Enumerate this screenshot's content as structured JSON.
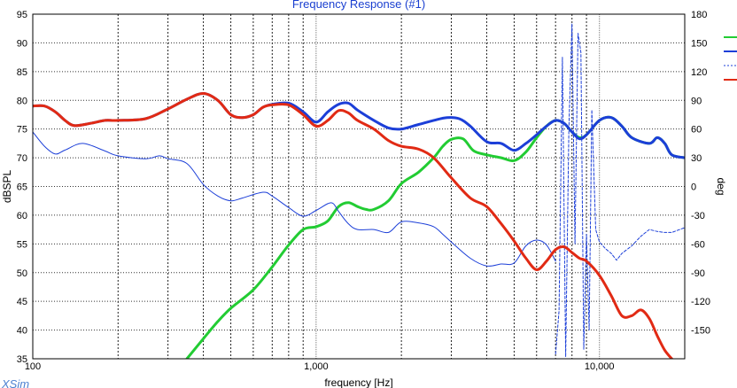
{
  "chart_data": {
    "type": "line",
    "title": "Frequency Response (#1)",
    "xlabel": "frequency [Hz]",
    "ylabel": "dBSPL",
    "y2label": "deg",
    "xscale": "log",
    "xlim": [
      100,
      20000
    ],
    "ylim": [
      35,
      95
    ],
    "y2lim": [
      -180,
      180
    ],
    "x_ticks": [
      {
        "value": 100,
        "label": "100"
      },
      {
        "value": 1000,
        "label": "1,000"
      },
      {
        "value": 10000,
        "label": "10,000"
      }
    ],
    "y_ticks": [
      35,
      40,
      45,
      50,
      55,
      60,
      65,
      70,
      75,
      80,
      85,
      90,
      95
    ],
    "y2_ticks": [
      -150,
      -120,
      -90,
      -60,
      -30,
      0,
      30,
      60,
      90,
      120,
      150,
      180
    ],
    "grid": true,
    "legend_position": "right",
    "series": [
      {
        "color": "#22cc33",
        "axis": "left",
        "style": "solid",
        "width": 3,
        "points": [
          [
            350,
            35
          ],
          [
            400,
            38.5
          ],
          [
            450,
            41.5
          ],
          [
            500,
            43.8
          ],
          [
            600,
            47
          ],
          [
            700,
            51
          ],
          [
            800,
            54.8
          ],
          [
            900,
            57.5
          ],
          [
            1000,
            58
          ],
          [
            1100,
            59
          ],
          [
            1200,
            61.5
          ],
          [
            1300,
            62.2
          ],
          [
            1400,
            61.5
          ],
          [
            1500,
            61
          ],
          [
            1600,
            61
          ],
          [
            1800,
            62.5
          ],
          [
            2000,
            65.5
          ],
          [
            2300,
            67.5
          ],
          [
            2600,
            70
          ],
          [
            2800,
            72
          ],
          [
            3000,
            73.2
          ],
          [
            3300,
            73.3
          ],
          [
            3600,
            71.2
          ],
          [
            4000,
            70.5
          ],
          [
            4500,
            70
          ],
          [
            5000,
            69.5
          ],
          [
            5500,
            71
          ],
          [
            6000,
            73.5
          ],
          [
            6500,
            75.5
          ],
          [
            7000,
            76.5
          ],
          [
            7500,
            76
          ],
          [
            8000,
            74.5
          ],
          [
            8500,
            73.5
          ],
          [
            9000,
            74
          ],
          [
            10000,
            76.5
          ],
          [
            11000,
            77
          ],
          [
            12000,
            75.5
          ],
          [
            13000,
            73.5
          ],
          [
            15000,
            72.5
          ],
          [
            16000,
            73.5
          ],
          [
            17000,
            72.5
          ],
          [
            18000,
            70.5
          ],
          [
            20000,
            70
          ]
        ]
      },
      {
        "color": "#1c3fd8",
        "axis": "left",
        "style": "solid",
        "width": 3,
        "points": [
          [
            100,
            79
          ],
          [
            110,
            79
          ],
          [
            120,
            78
          ],
          [
            130,
            76.5
          ],
          [
            140,
            75.6
          ],
          [
            160,
            76
          ],
          [
            180,
            76.5
          ],
          [
            200,
            76.5
          ],
          [
            250,
            76.8
          ],
          [
            300,
            78.5
          ],
          [
            350,
            80.2
          ],
          [
            400,
            81.2
          ],
          [
            450,
            80
          ],
          [
            500,
            77.5
          ],
          [
            550,
            77
          ],
          [
            600,
            77.5
          ],
          [
            650,
            78.8
          ],
          [
            700,
            79.3
          ],
          [
            800,
            79.5
          ],
          [
            900,
            78
          ],
          [
            1000,
            76.2
          ],
          [
            1100,
            78
          ],
          [
            1200,
            79.3
          ],
          [
            1300,
            79.5
          ],
          [
            1400,
            78.3
          ],
          [
            1600,
            76.5
          ],
          [
            1800,
            75.2
          ],
          [
            2000,
            75
          ],
          [
            2300,
            75.8
          ],
          [
            2600,
            76.5
          ],
          [
            2900,
            77
          ],
          [
            3200,
            76.8
          ],
          [
            3500,
            75.5
          ],
          [
            4000,
            72.8
          ],
          [
            4500,
            72.5
          ],
          [
            5000,
            71.3
          ],
          [
            5500,
            72.5
          ],
          [
            6000,
            74
          ],
          [
            6500,
            75.5
          ],
          [
            7000,
            76.5
          ],
          [
            7500,
            76
          ],
          [
            8000,
            74.5
          ],
          [
            8500,
            73.3
          ],
          [
            9000,
            74
          ],
          [
            10000,
            76.5
          ],
          [
            11000,
            77
          ],
          [
            12000,
            75.5
          ],
          [
            13000,
            73.5
          ],
          [
            15000,
            72.5
          ],
          [
            16000,
            73.5
          ],
          [
            17000,
            72.5
          ],
          [
            18000,
            70.5
          ],
          [
            20000,
            70
          ]
        ]
      },
      {
        "color": "#1c3fd8",
        "axis": "right",
        "style": "solid",
        "width": 1,
        "points": [
          [
            100,
            57
          ],
          [
            110,
            42
          ],
          [
            120,
            34
          ],
          [
            130,
            38
          ],
          [
            150,
            45
          ],
          [
            180,
            37
          ],
          [
            200,
            32
          ],
          [
            250,
            29
          ],
          [
            280,
            32
          ],
          [
            300,
            29
          ],
          [
            350,
            24
          ],
          [
            400,
            2
          ],
          [
            450,
            -10
          ],
          [
            500,
            -15
          ],
          [
            550,
            -12
          ],
          [
            650,
            -6
          ],
          [
            700,
            -10
          ],
          [
            800,
            -22
          ],
          [
            900,
            -31
          ],
          [
            1000,
            -25
          ],
          [
            1100,
            -18
          ],
          [
            1150,
            -18
          ],
          [
            1200,
            -26
          ],
          [
            1300,
            -39
          ],
          [
            1400,
            -45
          ],
          [
            1600,
            -45
          ],
          [
            1800,
            -48
          ],
          [
            2000,
            -37
          ],
          [
            2300,
            -38
          ],
          [
            2600,
            -42
          ],
          [
            2800,
            -50
          ],
          [
            3000,
            -58
          ],
          [
            3500,
            -75
          ],
          [
            4000,
            -83
          ],
          [
            4500,
            -81
          ],
          [
            5000,
            -80
          ],
          [
            5500,
            -62
          ],
          [
            6000,
            -56
          ],
          [
            6500,
            -61
          ],
          [
            7000,
            -78
          ]
        ]
      },
      {
        "color": "#1c3fd8",
        "axis": "right",
        "style": "dashed",
        "width": 1,
        "points": [
          [
            7000,
            -175
          ],
          [
            7200,
            -130
          ],
          [
            7400,
            135
          ],
          [
            7600,
            -178
          ],
          [
            7800,
            60
          ],
          [
            8000,
            170
          ],
          [
            8200,
            -60
          ],
          [
            8400,
            160
          ],
          [
            8600,
            140
          ],
          [
            8800,
            -170
          ],
          [
            9000,
            -50
          ],
          [
            9200,
            -150
          ],
          [
            9400,
            80
          ],
          [
            9700,
            -45
          ],
          [
            10000,
            -58
          ],
          [
            10500,
            -65
          ],
          [
            11000,
            -70
          ],
          [
            11500,
            -77
          ],
          [
            12000,
            -70
          ],
          [
            13000,
            -62
          ],
          [
            14000,
            -52
          ],
          [
            15000,
            -45
          ],
          [
            16000,
            -47
          ],
          [
            17000,
            -48
          ],
          [
            18000,
            -48
          ],
          [
            20000,
            -43
          ]
        ]
      },
      {
        "color": "#e12a14",
        "axis": "left",
        "style": "solid",
        "width": 3,
        "points": [
          [
            100,
            79
          ],
          [
            110,
            79
          ],
          [
            120,
            78
          ],
          [
            130,
            76.5
          ],
          [
            140,
            75.6
          ],
          [
            160,
            76
          ],
          [
            180,
            76.5
          ],
          [
            200,
            76.5
          ],
          [
            250,
            76.8
          ],
          [
            300,
            78.5
          ],
          [
            350,
            80.2
          ],
          [
            400,
            81.2
          ],
          [
            450,
            80
          ],
          [
            500,
            77.5
          ],
          [
            550,
            77
          ],
          [
            600,
            77.5
          ],
          [
            650,
            78.8
          ],
          [
            700,
            79.2
          ],
          [
            800,
            79.2
          ],
          [
            900,
            77.5
          ],
          [
            1000,
            75.5
          ],
          [
            1100,
            76.5
          ],
          [
            1200,
            78.2
          ],
          [
            1300,
            77.8
          ],
          [
            1400,
            76.5
          ],
          [
            1600,
            75
          ],
          [
            1800,
            73
          ],
          [
            2000,
            72
          ],
          [
            2300,
            71.5
          ],
          [
            2600,
            70
          ],
          [
            3000,
            66.5
          ],
          [
            3500,
            63
          ],
          [
            4000,
            61.5
          ],
          [
            4500,
            58.5
          ],
          [
            5000,
            55.5
          ],
          [
            5500,
            52.5
          ],
          [
            6000,
            50.5
          ],
          [
            6500,
            52
          ],
          [
            7000,
            54
          ],
          [
            7500,
            54.5
          ],
          [
            8000,
            53.5
          ],
          [
            8500,
            52.5
          ],
          [
            9000,
            52
          ],
          [
            10000,
            49.5
          ],
          [
            11000,
            46
          ],
          [
            12000,
            42.5
          ],
          [
            13000,
            42.5
          ],
          [
            14000,
            43.5
          ],
          [
            15000,
            42
          ],
          [
            16000,
            39
          ],
          [
            17000,
            36.5
          ],
          [
            18000,
            35
          ]
        ]
      }
    ],
    "brand_text": "XSim"
  }
}
